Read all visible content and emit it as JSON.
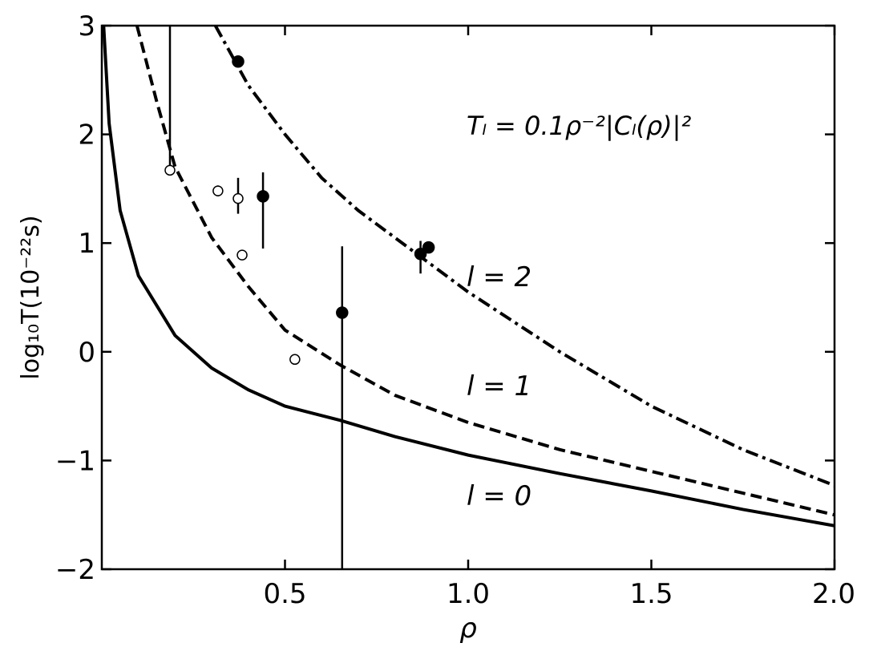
{
  "chart_data": {
    "type": "line",
    "xlabel": "ρ",
    "ylabel": "log₁₀T(10⁻²²s)",
    "annotation": "Tₗ = 0.1ρ⁻²|Cₗ(ρ)|²",
    "xlim": [
      0,
      2
    ],
    "ylim": [
      -2,
      3
    ],
    "xticks": [
      0.5,
      {
        "value": 1,
        "label": "1.0"
      },
      1.5,
      {
        "value": 2,
        "label": "2.0"
      }
    ],
    "yticks": [
      {
        "value": -2,
        "label": "−2"
      },
      {
        "value": -1,
        "label": "−1"
      },
      0,
      1,
      2,
      3
    ],
    "series": [
      {
        "name": "l = 0",
        "color": "#000000",
        "dash": "solid",
        "x": [
          0.005,
          0.02,
          0.05,
          0.1,
          0.2,
          0.3,
          0.4,
          0.5,
          0.65,
          0.8,
          1.0,
          1.25,
          1.5,
          1.75,
          2.0
        ],
        "values": [
          3.0,
          2.1,
          1.3,
          0.7,
          0.15,
          -0.15,
          -0.35,
          -0.5,
          -0.63,
          -0.78,
          -0.95,
          -1.12,
          -1.28,
          -1.45,
          -1.6
        ]
      },
      {
        "name": "l = 1",
        "color": "#000000",
        "dash": "dashed",
        "x": [
          0.096,
          0.15,
          0.2,
          0.3,
          0.4,
          0.5,
          0.65,
          0.8,
          1.0,
          1.25,
          1.5,
          1.75,
          2.0
        ],
        "values": [
          3.0,
          2.3,
          1.7,
          1.05,
          0.6,
          0.2,
          -0.12,
          -0.4,
          -0.65,
          -0.9,
          -1.1,
          -1.3,
          -1.5
        ]
      },
      {
        "name": "l = 2",
        "color": "#000000",
        "dash": "dashdot",
        "x": [
          0.31,
          0.4,
          0.5,
          0.6,
          0.7,
          0.8,
          0.9,
          1.0,
          1.25,
          1.5,
          1.75,
          2.0
        ],
        "values": [
          3.0,
          2.45,
          2.0,
          1.6,
          1.3,
          1.05,
          0.8,
          0.55,
          0.0,
          -0.5,
          -0.9,
          -1.23
        ]
      }
    ],
    "points": [
      {
        "fill": "filled",
        "x": [
          0.372,
          0.44,
          0.656,
          0.87,
          0.892
        ],
        "values": [
          2.67,
          1.43,
          0.36,
          0.9,
          0.96
        ],
        "yerr_minus": [
          null,
          0.48,
          2.36,
          0.18,
          null
        ],
        "yerr_plus": [
          null,
          0.22,
          0.61,
          0.12,
          null
        ]
      },
      {
        "fill": "open",
        "x": [
          0.186,
          0.317,
          0.372,
          0.383,
          0.527
        ],
        "values": [
          1.67,
          1.48,
          1.41,
          0.89,
          -0.07
        ],
        "yerr_minus": [
          0.0,
          0.05,
          0.14,
          null,
          null
        ],
        "yerr_plus": [
          1.33,
          0.05,
          0.19,
          null,
          null
        ]
      }
    ]
  }
}
